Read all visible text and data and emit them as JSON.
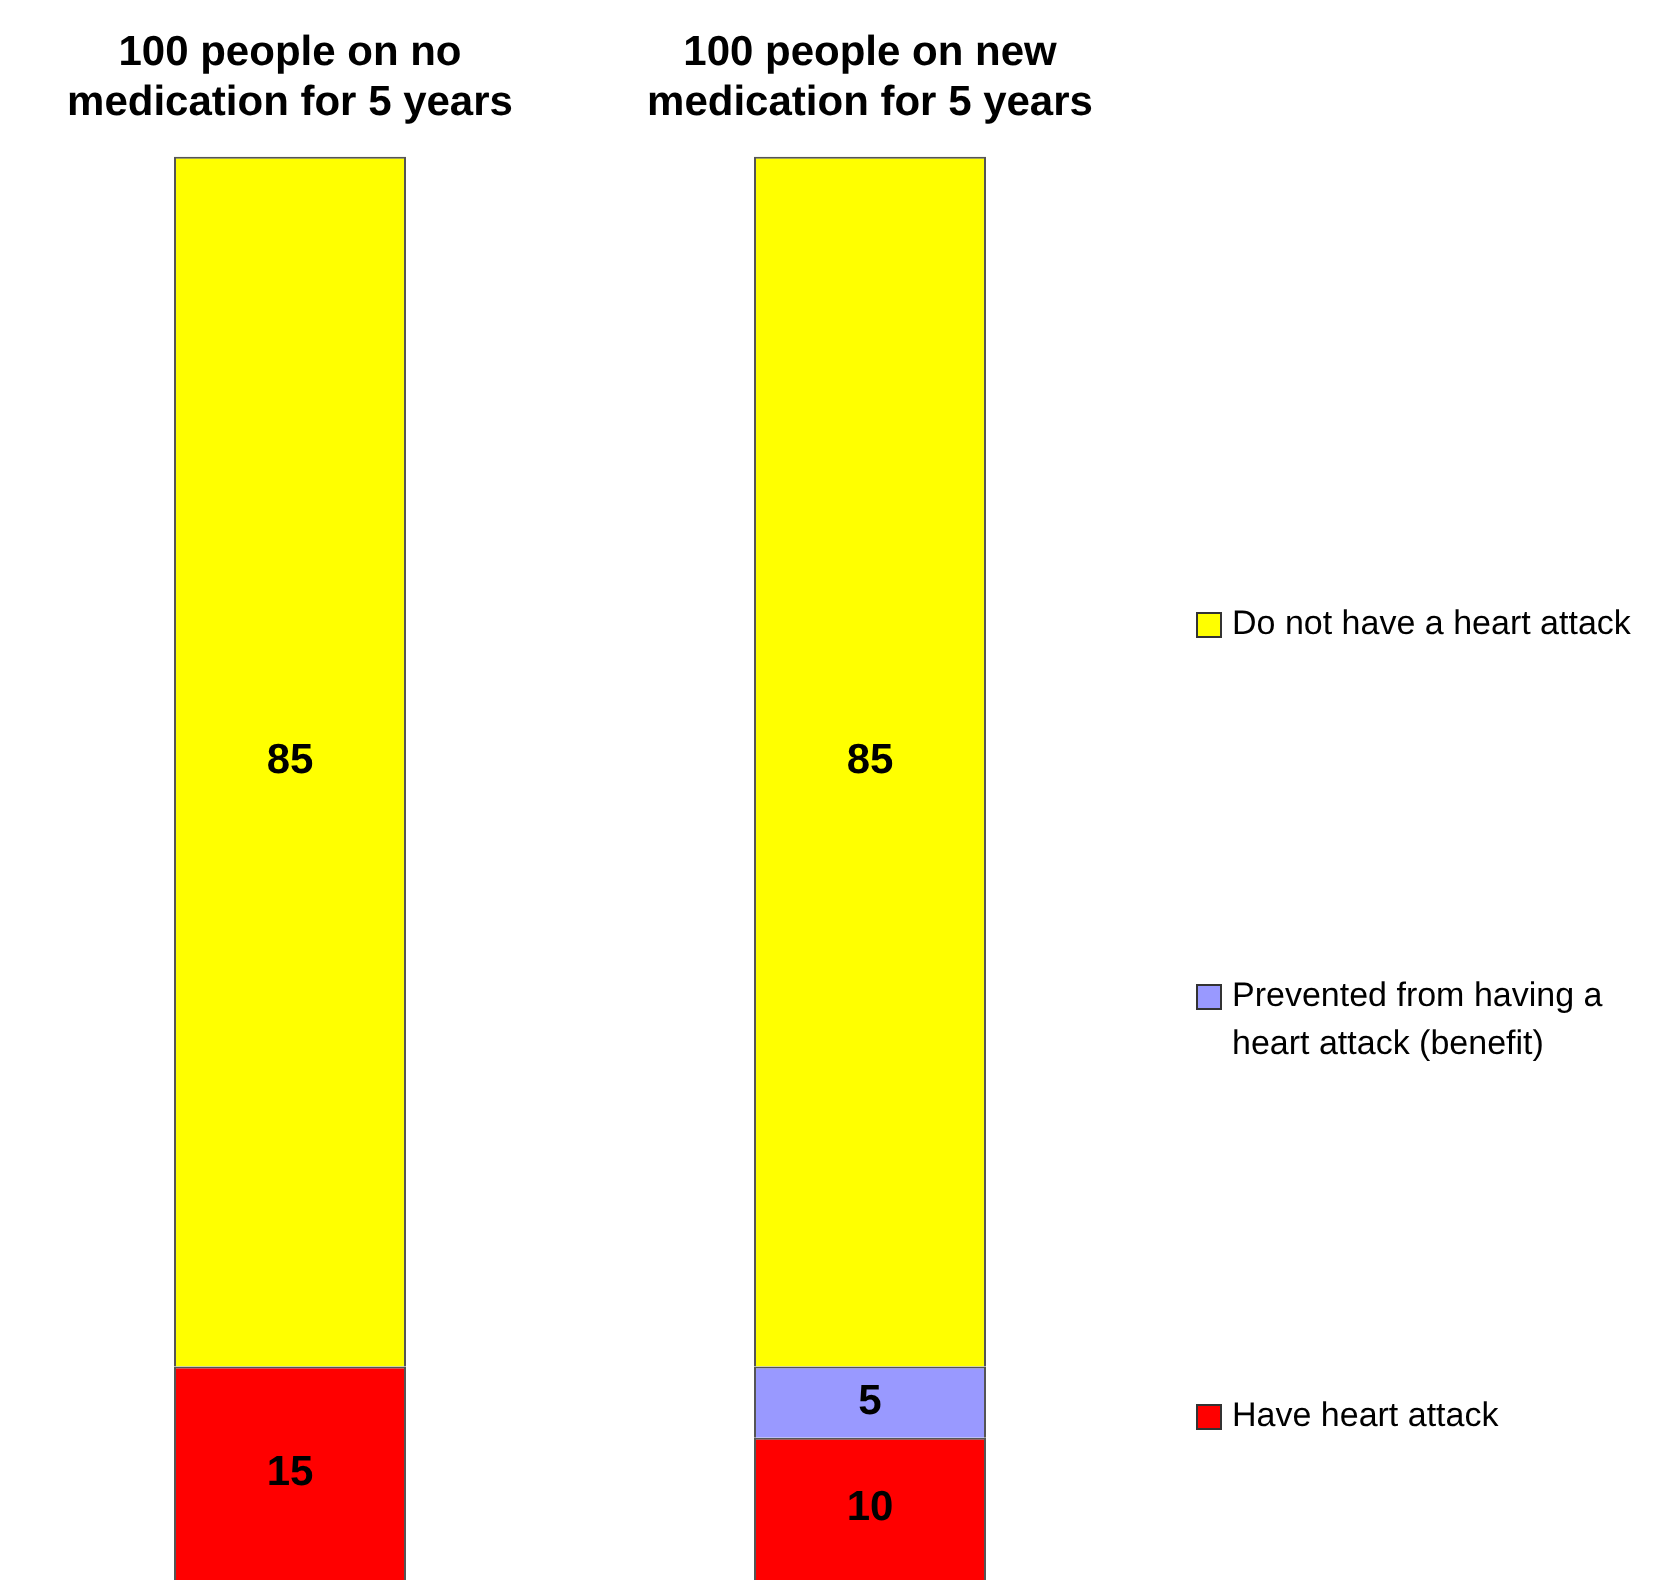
{
  "chart_data": {
    "type": "bar",
    "stacked": true,
    "categories": [
      "100 people on no medication for 5 years",
      "100 people on new medication for 5 years"
    ],
    "series": [
      {
        "name": "Have heart attack",
        "color": "#ff0000",
        "values": [
          15,
          10
        ]
      },
      {
        "name": "Prevented from having a heart attack (benefit)",
        "color": "#9999ff",
        "values": [
          null,
          5
        ]
      },
      {
        "name": "Do not have a heart attack",
        "color": "#ffff00",
        "values": [
          85,
          85
        ]
      }
    ],
    "data_labels": true,
    "legend": "right",
    "grid": false,
    "tick_labels": "x"
  }
}
